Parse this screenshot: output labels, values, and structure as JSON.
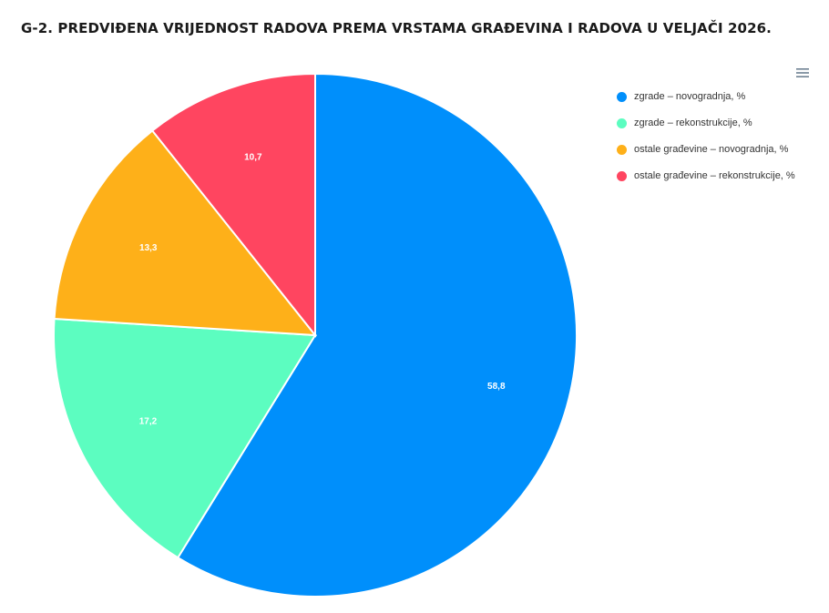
{
  "title": "G-2. PREDVIĐENA VRIJEDNOST RADOVA PREMA VRSTAMA GRAĐEVINA I RADOVA U VELJAČI 2026.",
  "menu_icon": "hamburger-menu-icon",
  "chart_data": {
    "type": "pie",
    "title": "G-2. PREDVIĐENA VRIJEDNOST RADOVA PREMA VRSTAMA GRAĐEVINA I RADOVA U VELJAČI 2026.",
    "start_angle_deg": 0,
    "direction": "clockwise",
    "legend_position": "right",
    "slices": [
      {
        "name": "zgrade – novogradnja, %",
        "value": 58.8,
        "label": "58,8",
        "color": "#008FFB"
      },
      {
        "name": "zgrade – rekonstrukcije, %",
        "value": 17.2,
        "label": "17,2",
        "color": "#5CFDC0"
      },
      {
        "name": "ostale građevine – novogradnja, %",
        "value": 13.3,
        "label": "13,3",
        "color": "#FEB019"
      },
      {
        "name": "ostale građevine – rekonstrukcije, %",
        "value": 10.7,
        "label": "10,7",
        "color": "#FF4560"
      }
    ]
  }
}
